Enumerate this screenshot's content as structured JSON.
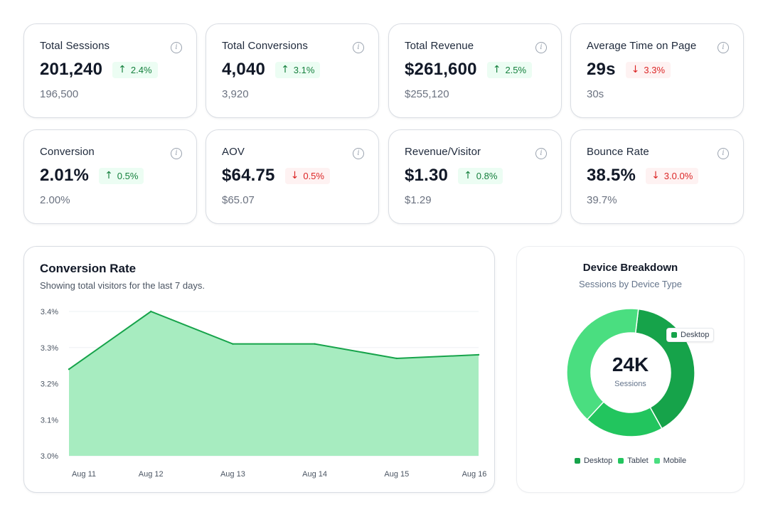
{
  "metrics": [
    {
      "title": "Total Sessions",
      "value": "201,240",
      "change": "2.4%",
      "direction": "up",
      "previous": "196,500"
    },
    {
      "title": "Total Conversions",
      "value": "4,040",
      "change": "3.1%",
      "direction": "up",
      "previous": "3,920"
    },
    {
      "title": "Total Revenue",
      "value": "$261,600",
      "change": "2.5%",
      "direction": "up",
      "previous": "$255,120"
    },
    {
      "title": "Average Time on Page",
      "value": "29s",
      "change": "3.3%",
      "direction": "down",
      "previous": "30s"
    },
    {
      "title": "Conversion",
      "value": "2.01%",
      "change": "0.5%",
      "direction": "up",
      "previous": "2.00%"
    },
    {
      "title": "AOV",
      "value": "$64.75",
      "change": "0.5%",
      "direction": "down",
      "previous": "$65.07"
    },
    {
      "title": "Revenue/Visitor",
      "value": "$1.30",
      "change": "0.8%",
      "direction": "up",
      "previous": "$1.29"
    },
    {
      "title": "Bounce Rate",
      "value": "38.5%",
      "change": "3.0.0%",
      "direction": "down",
      "previous": "39.7%"
    }
  ],
  "icons": {
    "info": "info-icon",
    "up": "arrow-up-icon",
    "down": "arrow-down-icon",
    "up_glyph": "↑",
    "down_glyph": "↓",
    "info_glyph": "i"
  },
  "colors": {
    "accent_green": "#16a34a",
    "area_fill": "#a7ecc0",
    "down_red": "#dc2626",
    "desktop": "#16a34a",
    "tablet": "#22c55e",
    "mobile": "#4ade80"
  },
  "chart_data": [
    {
      "type": "area",
      "title": "Conversion Rate",
      "subtitle": "Showing total visitors for the last 7 days.",
      "categories": [
        "Aug 11",
        "Aug 12",
        "Aug 13",
        "Aug 14",
        "Aug 15",
        "Aug 16"
      ],
      "values": [
        3.24,
        3.4,
        3.31,
        3.31,
        3.27,
        3.28
      ],
      "y_ticks": [
        "3.4%",
        "3.3%",
        "3.2%",
        "3.1%",
        "3.0%"
      ],
      "ylim": [
        3.0,
        3.4
      ],
      "grid": true
    },
    {
      "type": "pie",
      "title": "Device Breakdown",
      "subtitle": "Sessions by Device Type",
      "center_value": "24K",
      "center_label": "Sessions",
      "tooltip": "Desktop",
      "slices": [
        {
          "label": "Desktop",
          "value": 40
        },
        {
          "label": "Tablet",
          "value": 20
        },
        {
          "label": "Mobile",
          "value": 40
        }
      ]
    }
  ]
}
